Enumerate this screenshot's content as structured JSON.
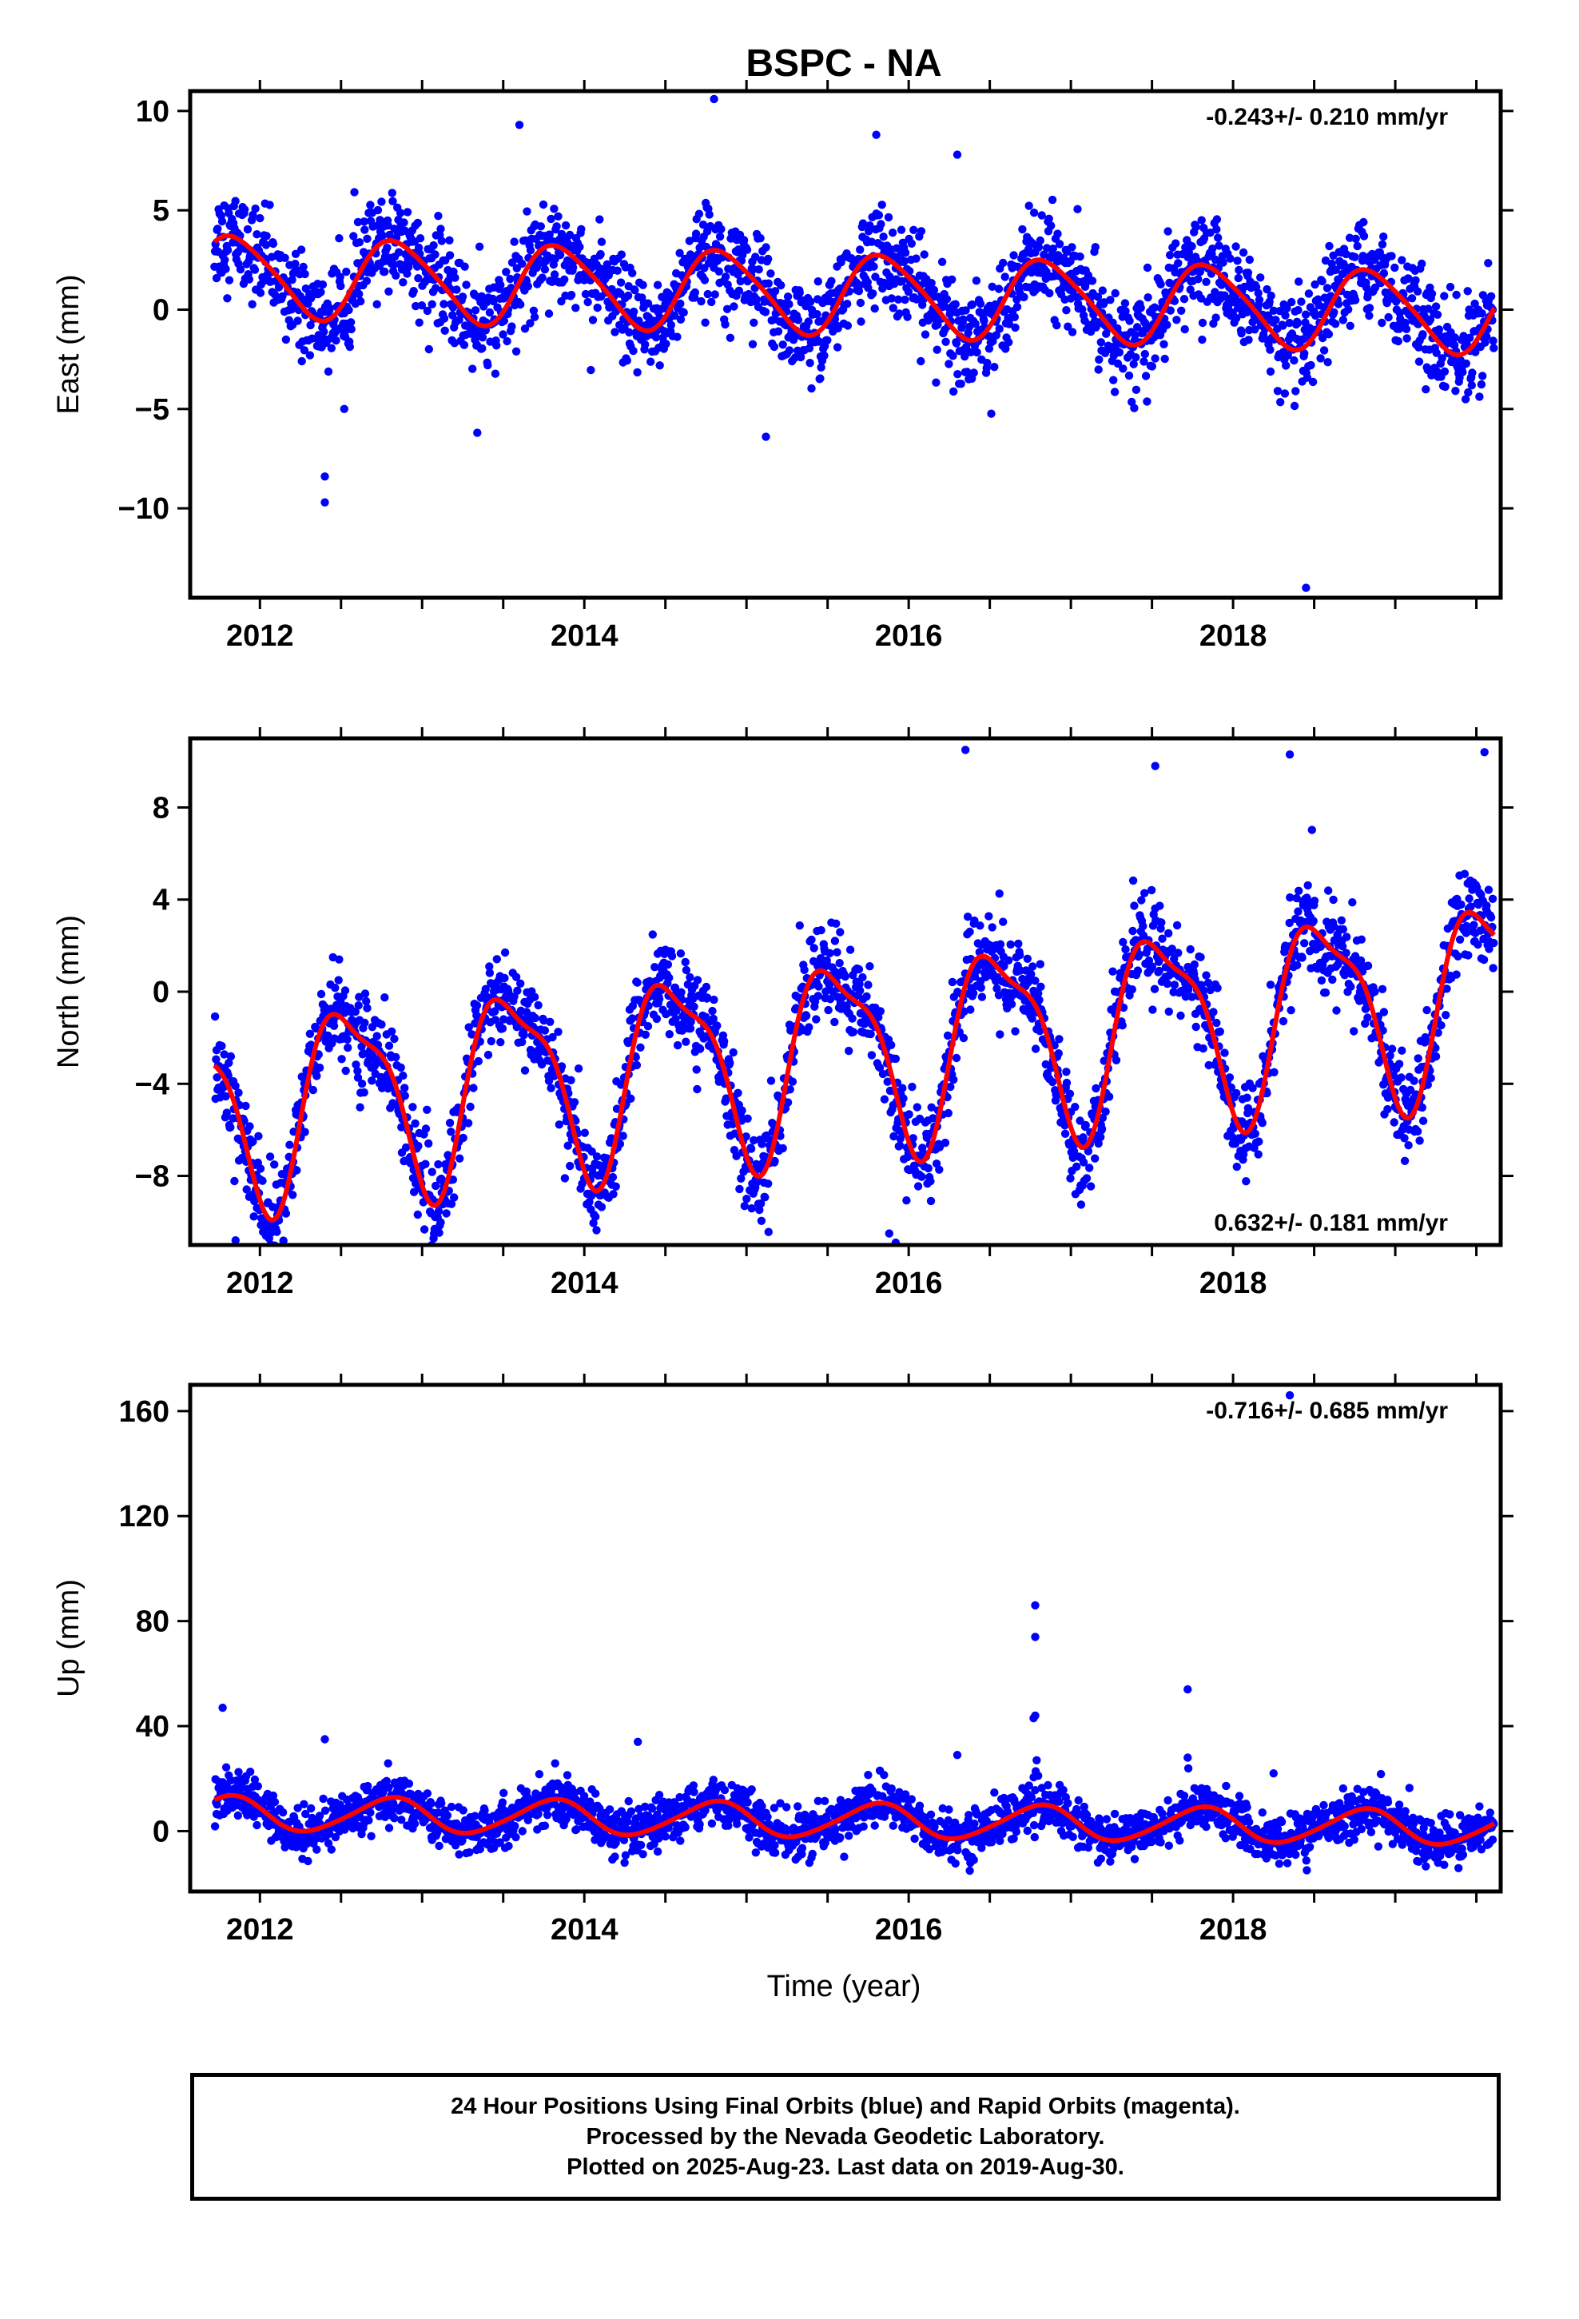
{
  "title": "BSPC - NA",
  "xlabel": "Time (year)",
  "caption": [
    "24 Hour Positions Using Final Orbits (blue) and Rapid Orbits (magenta).",
    "Processed by the Nevada Geodetic Laboratory.",
    "Plotted on 2025-Aug-23. Last data on 2019-Aug-30."
  ],
  "colors": {
    "points": "#0000ff",
    "fit": "#ff0000",
    "frame": "#000000"
  },
  "chart_data": [
    {
      "type": "scatter",
      "ylabel": "East (mm)",
      "rate_label": "-0.243+/- 0.210 mm/yr",
      "rate_position": "top-right",
      "xlim": [
        2011.57,
        2019.65
      ],
      "ylim": [
        -14.5,
        11
      ],
      "x_ticks": [
        2012,
        2014,
        2016,
        2018
      ],
      "y_ticks": [
        10,
        5,
        0,
        -5,
        -10
      ],
      "y_tick_labels": [
        "10",
        "5",
        "0",
        "−5",
        "−10"
      ],
      "fit": {
        "trend": -0.243,
        "offset": 0.8,
        "annual_amp": 2.0,
        "annual_peak_frac": 0.85,
        "semiannual_amp": 0.3,
        "semiannual_peak_frac": 0.7
      },
      "scatter_sd": 1.2,
      "outliers": [
        [
          2014.8,
          10.6
        ],
        [
          2012.4,
          -8.4
        ],
        [
          2012.4,
          -9.7
        ],
        [
          2013.6,
          9.3
        ],
        [
          2018.45,
          -14.0
        ],
        [
          2015.8,
          8.8
        ],
        [
          2016.3,
          7.8
        ],
        [
          2013.34,
          -6.2
        ],
        [
          2015.12,
          -6.4
        ],
        [
          2012.52,
          -5.0
        ]
      ]
    },
    {
      "type": "scatter",
      "ylabel": "North (mm)",
      "rate_label": "0.632+/- 0.181 mm/yr",
      "rate_position": "bottom-right",
      "xlim": [
        2011.57,
        2019.65
      ],
      "ylim": [
        -11,
        11
      ],
      "x_ticks": [
        2012,
        2014,
        2016,
        2018
      ],
      "y_ticks": [
        8,
        4,
        0,
        -4,
        -8
      ],
      "y_tick_labels": [
        "8",
        "4",
        "0",
        "−4",
        "−8"
      ],
      "fit": {
        "trend": 0.632,
        "offset": -2.6,
        "annual_amp": 4.0,
        "annual_peak_frac": 0.55,
        "semiannual_amp": 1.2,
        "semiannual_peak_frac": 0.35
      },
      "scatter_sd": 1.0,
      "outliers": [
        [
          2011.85,
          -10.8
        ],
        [
          2015.88,
          -10.5
        ],
        [
          2015.92,
          -10.9
        ],
        [
          2016.35,
          10.5
        ],
        [
          2018.35,
          10.3
        ],
        [
          2019.55,
          10.4
        ],
        [
          2017.52,
          9.8
        ],
        [
          2013.88,
          -8.1
        ],
        [
          2015.05,
          -8.6
        ],
        [
          2012.95,
          -8.7
        ]
      ]
    },
    {
      "type": "scatter",
      "ylabel": "Up (mm)",
      "rate_label": "-0.716+/- 0.685 mm/yr",
      "rate_position": "top-right",
      "xlim": [
        2011.57,
        2019.65
      ],
      "ylim": [
        -23,
        170
      ],
      "x_ticks": [
        2012,
        2014,
        2016,
        2018
      ],
      "y_ticks": [
        160,
        120,
        80,
        40,
        0
      ],
      "y_tick_labels": [
        "160",
        "120",
        "80",
        "40",
        "0"
      ],
      "fit": {
        "trend": -0.716,
        "offset": 4.0,
        "annual_amp": 6.5,
        "annual_peak_frac": 0.8,
        "semiannual_amp": 0.8,
        "semiannual_peak_frac": 0.4
      },
      "scatter_sd": 4.5,
      "outliers": [
        [
          2011.77,
          47
        ],
        [
          2012.4,
          35
        ],
        [
          2014.33,
          34
        ],
        [
          2016.3,
          29
        ],
        [
          2016.78,
          86
        ],
        [
          2016.78,
          74
        ],
        [
          2016.78,
          44
        ],
        [
          2016.77,
          43
        ],
        [
          2017.72,
          54
        ],
        [
          2017.72,
          28
        ],
        [
          2018.25,
          22
        ],
        [
          2018.35,
          166
        ]
      ]
    }
  ]
}
